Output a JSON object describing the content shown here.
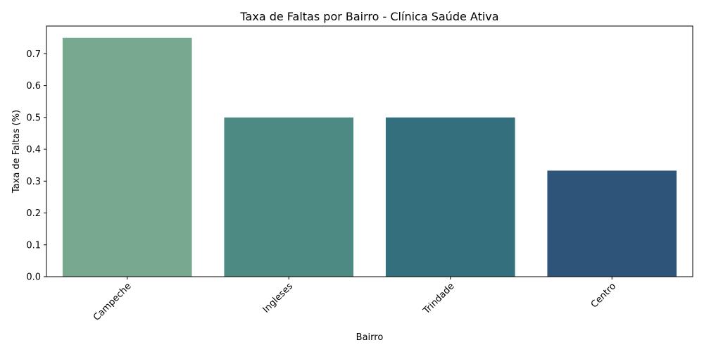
{
  "chart_data": {
    "type": "bar",
    "title": "Taxa de Faltas por Bairro - Clínica Saúde Ativa",
    "xlabel": "Bairro",
    "ylabel": "Taxa de Faltas (%)",
    "categories": [
      "Campeche",
      "Ingleses",
      "Trindade",
      "Centro"
    ],
    "values": [
      0.75,
      0.5,
      0.5,
      0.333
    ],
    "colors": [
      "#78a890",
      "#4e8a84",
      "#336f7c",
      "#2e5479"
    ],
    "ylim": [
      0,
      0.787
    ],
    "yticks": [
      "0.0",
      "0.1",
      "0.2",
      "0.3",
      "0.4",
      "0.5",
      "0.6",
      "0.7"
    ],
    "x_tick_rotation": 45,
    "grid": false,
    "legend": "none"
  }
}
